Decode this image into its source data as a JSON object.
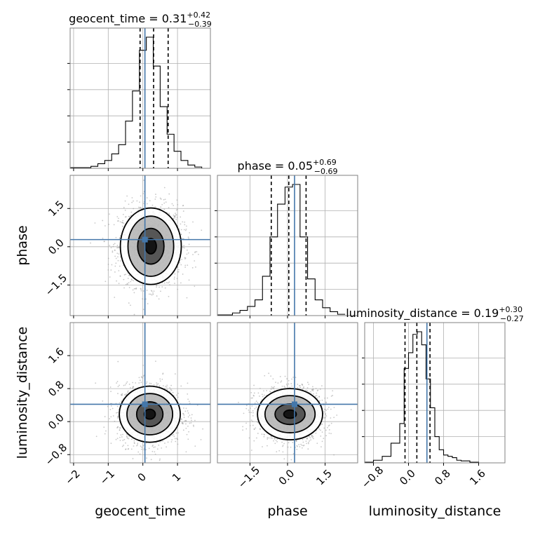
{
  "chart_data": [
    {
      "type": "histogram",
      "panel": "geocent_time-marginal",
      "title": {
        "base": "geocent_time = 0.31",
        "sup": "+0.42",
        "sub": "−0.39"
      },
      "xlim": [
        -2.1,
        1.95
      ],
      "bin_edges": [
        -2.1,
        -1.5,
        -1.3,
        -1.1,
        -0.9,
        -0.7,
        -0.5,
        -0.3,
        -0.1,
        0.1,
        0.3,
        0.5,
        0.7,
        0.9,
        1.1,
        1.3,
        1.5,
        1.7,
        1.9
      ],
      "counts": [
        0.005,
        0.015,
        0.035,
        0.06,
        0.11,
        0.18,
        0.36,
        0.59,
        0.9,
        1.0,
        0.78,
        0.47,
        0.26,
        0.13,
        0.06,
        0.025,
        0.01,
        0.0
      ],
      "quantiles": [
        -0.08,
        0.31,
        0.73
      ],
      "truth": 0.06
    },
    {
      "type": "scatter-contour",
      "panel": "phase-vs-geocent_time",
      "xlim": [
        -2.1,
        1.95
      ],
      "ylim": [
        -2.7,
        2.8
      ],
      "center": [
        0.23,
        0.02
      ],
      "levels": [
        [
          0.16,
          0.3
        ],
        [
          0.38,
          0.7
        ],
        [
          0.66,
          1.18
        ],
        [
          0.88,
          1.5
        ]
      ],
      "truth": [
        0.06,
        0.28
      ]
    },
    {
      "type": "histogram",
      "panel": "phase-marginal",
      "title": {
        "base": "phase = 0.05",
        "sup": "+0.69",
        "sub": "−0.69"
      },
      "xlim": [
        -2.8,
        2.8
      ],
      "bin_edges": [
        -2.8,
        -2.2,
        -1.9,
        -1.6,
        -1.3,
        -1.0,
        -0.7,
        -0.4,
        -0.1,
        0.2,
        0.5,
        0.8,
        1.1,
        1.4,
        1.7,
        2.0,
        2.3
      ],
      "counts": [
        0.005,
        0.02,
        0.04,
        0.07,
        0.12,
        0.3,
        0.6,
        0.85,
        0.98,
        1.0,
        0.6,
        0.28,
        0.12,
        0.06,
        0.03,
        0.01
      ],
      "quantiles": [
        -0.65,
        0.05,
        0.74
      ],
      "truth": 0.28
    },
    {
      "type": "scatter-contour",
      "panel": "luminosity_distance-vs-geocent_time",
      "xlim": [
        -2.1,
        1.95
      ],
      "ylim": [
        -1.0,
        2.4
      ],
      "center": [
        0.2,
        0.18
      ],
      "levels": [
        [
          0.16,
          0.12
        ],
        [
          0.38,
          0.3
        ],
        [
          0.66,
          0.5
        ],
        [
          0.88,
          0.68
        ]
      ],
      "truth": [
        0.06,
        0.42
      ]
    },
    {
      "type": "scatter-contour",
      "panel": "luminosity_distance-vs-phase",
      "xlim": [
        -2.8,
        2.8
      ],
      "ylim": [
        -1.0,
        2.4
      ],
      "center": [
        0.1,
        0.18
      ],
      "levels": [
        [
          0.25,
          0.1
        ],
        [
          0.6,
          0.25
        ],
        [
          1.0,
          0.45
        ],
        [
          1.3,
          0.62
        ]
      ],
      "truth": [
        0.28,
        0.42
      ]
    },
    {
      "type": "histogram",
      "panel": "luminosity_distance-marginal",
      "title": {
        "base": "luminosity_distance = 0.19",
        "sup": "+0.30",
        "sub": "−0.27"
      },
      "xlim": [
        -1.0,
        2.2
      ],
      "bin_edges": [
        -1.0,
        -0.8,
        -0.6,
        -0.4,
        -0.2,
        -0.1,
        0.0,
        0.1,
        0.2,
        0.3,
        0.4,
        0.5,
        0.6,
        0.7,
        0.8,
        0.9,
        1.0,
        1.1,
        1.2,
        1.4,
        1.6,
        2.2
      ],
      "counts": [
        0.005,
        0.02,
        0.05,
        0.15,
        0.3,
        0.72,
        0.84,
        0.98,
        1.0,
        0.9,
        0.64,
        0.42,
        0.2,
        0.1,
        0.06,
        0.05,
        0.04,
        0.02,
        0.015,
        0.005,
        0.0
      ],
      "quantiles": [
        -0.08,
        0.19,
        0.49
      ],
      "truth": 0.42
    }
  ],
  "x_axes": [
    {
      "label": "geocent_time",
      "ticks": [
        {
          "value": -2,
          "label": "−2"
        },
        {
          "value": -1,
          "label": "−1"
        },
        {
          "value": 0,
          "label": "0"
        },
        {
          "value": 1,
          "label": "1"
        }
      ]
    },
    {
      "label": "phase",
      "ticks": [
        {
          "value": -1.5,
          "label": "−1.5"
        },
        {
          "value": 0,
          "label": "0.0"
        },
        {
          "value": 1.5,
          "label": "1.5"
        }
      ]
    },
    {
      "label": "luminosity_distance",
      "ticks": [
        {
          "value": -0.8,
          "label": "−0.8"
        },
        {
          "value": 0,
          "label": "0.0"
        },
        {
          "value": 0.8,
          "label": "0.8"
        },
        {
          "value": 1.6,
          "label": "1.6"
        }
      ]
    }
  ],
  "y_axes": [
    {
      "label": "phase",
      "ticks": [
        {
          "value": -1.5,
          "label": "−1.5"
        },
        {
          "value": 0,
          "label": "0.0"
        },
        {
          "value": 1.5,
          "label": "1.5"
        }
      ]
    },
    {
      "label": "luminosity_distance",
      "ticks": [
        {
          "value": -0.8,
          "label": "−0.8"
        },
        {
          "value": 0,
          "label": "0.0"
        },
        {
          "value": 0.8,
          "label": "0.8"
        },
        {
          "value": 1.6,
          "label": "1.6"
        }
      ]
    }
  ],
  "colors": {
    "truth": "#4477aa",
    "hist": "#000000",
    "grid": "#b0b0b0",
    "frame": "#808080",
    "scatter": "#9a9a9a"
  }
}
